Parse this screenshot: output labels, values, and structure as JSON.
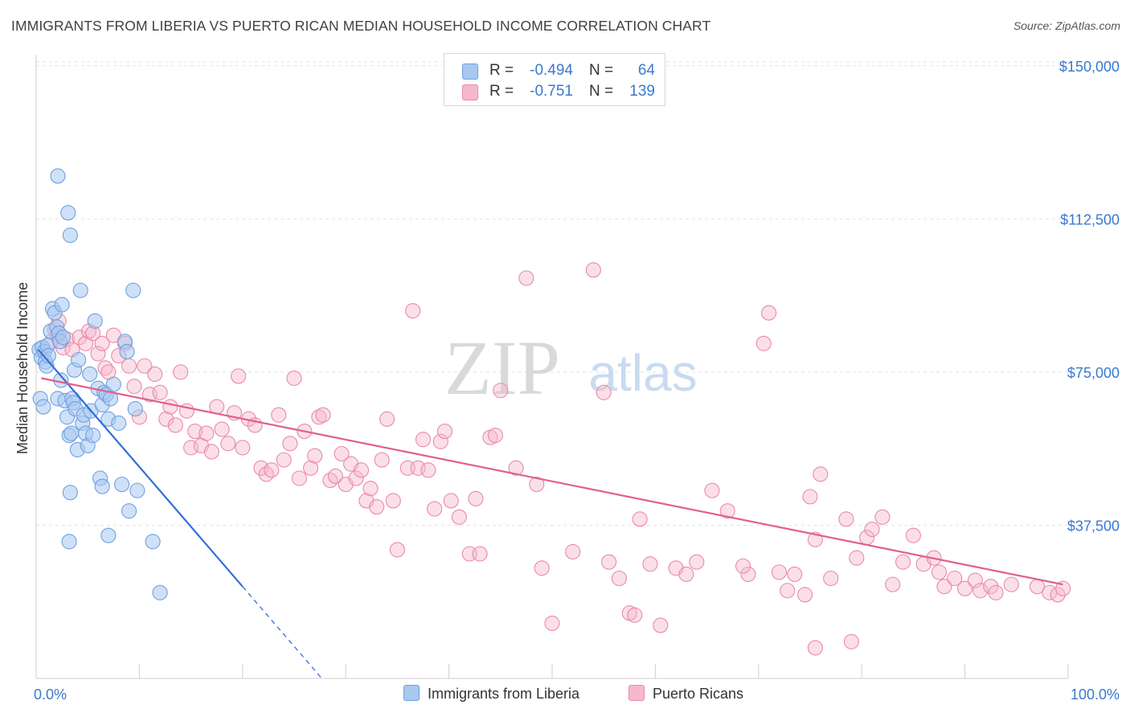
{
  "title": "IMMIGRANTS FROM LIBERIA VS PUERTO RICAN MEDIAN HOUSEHOLD INCOME CORRELATION CHART",
  "source": "Source: ZipAtlas.com",
  "watermark": {
    "zip": "ZIP",
    "atlas": "atlas"
  },
  "legend_stats": [
    {
      "r_label": "R =",
      "r_value": "-0.494",
      "n_label": "N =",
      "n_value": "64",
      "color": "#a8c8f0",
      "stroke": "#6f9fe0"
    },
    {
      "r_label": "R =",
      "r_value": "-0.751",
      "n_label": "N =",
      "n_value": "139",
      "color": "#f7b8cb",
      "stroke": "#e98aa7"
    }
  ],
  "bottom_legend": [
    {
      "label": "Immigrants from Liberia",
      "color": "#a8c8f0",
      "stroke": "#6f9fe0"
    },
    {
      "label": "Puerto Ricans",
      "color": "#f7b8cb",
      "stroke": "#e98aa7"
    }
  ],
  "chart_data": {
    "type": "scatter",
    "title": "IMMIGRANTS FROM LIBERIA VS PUERTO RICAN MEDIAN HOUSEHOLD INCOME CORRELATION CHART",
    "xlabel": "",
    "ylabel": "Median Household Income",
    "x_tick_labels": [
      "0.0%",
      "100.0%"
    ],
    "y_tick_labels": [
      "$37,500",
      "$75,000",
      "$112,500",
      "$150,000"
    ],
    "y_ticks": [
      37500,
      75000,
      112500,
      150000
    ],
    "xlim": [
      0,
      100
    ],
    "ylim": [
      0,
      155000
    ],
    "grid": true,
    "colors": {
      "blue_fill": "#a8c8f0",
      "blue_stroke": "#6f9fe0",
      "blue_line": "#2f6fd6",
      "pink_fill": "#f7b8cb",
      "pink_stroke": "#e98aa7",
      "pink_line": "#e0608c",
      "tick_text": "#3b79d0",
      "grid": "#e3e3e3"
    },
    "series": [
      {
        "name": "Immigrants from Liberia",
        "color": "#a8c8f0",
        "trend": {
          "x": [
            0.2,
            20.0
          ],
          "y": [
            80500,
            22500
          ],
          "dashed_to": [
            30,
            -9000
          ]
        },
        "points": [
          [
            0.3,
            80500
          ],
          [
            0.5,
            78500
          ],
          [
            0.6,
            81000
          ],
          [
            0.8,
            80000
          ],
          [
            0.9,
            77500
          ],
          [
            1.0,
            76500
          ],
          [
            1.1,
            81500
          ],
          [
            1.2,
            79000
          ],
          [
            0.4,
            68500
          ],
          [
            0.7,
            66500
          ],
          [
            1.4,
            85000
          ],
          [
            1.6,
            90500
          ],
          [
            1.8,
            89500
          ],
          [
            2.0,
            86000
          ],
          [
            2.2,
            84500
          ],
          [
            2.3,
            82500
          ],
          [
            2.5,
            91500
          ],
          [
            2.6,
            83500
          ],
          [
            2.1,
            68500
          ],
          [
            2.4,
            73000
          ],
          [
            2.8,
            68000
          ],
          [
            3.0,
            64000
          ],
          [
            3.2,
            59500
          ],
          [
            3.4,
            60000
          ],
          [
            3.5,
            68500
          ],
          [
            3.6,
            67500
          ],
          [
            3.7,
            75500
          ],
          [
            3.8,
            66000
          ],
          [
            4.0,
            56000
          ],
          [
            4.1,
            78000
          ],
          [
            4.3,
            95000
          ],
          [
            4.5,
            62500
          ],
          [
            4.6,
            64500
          ],
          [
            4.8,
            60000
          ],
          [
            5.0,
            57000
          ],
          [
            5.2,
            74500
          ],
          [
            5.3,
            65500
          ],
          [
            5.5,
            59500
          ],
          [
            5.7,
            87500
          ],
          [
            6.0,
            71000
          ],
          [
            6.2,
            49000
          ],
          [
            6.4,
            67000
          ],
          [
            6.6,
            70000
          ],
          [
            6.8,
            69500
          ],
          [
            7.0,
            63500
          ],
          [
            7.2,
            68500
          ],
          [
            7.5,
            72000
          ],
          [
            8.0,
            62500
          ],
          [
            8.3,
            47500
          ],
          [
            8.6,
            82500
          ],
          [
            8.8,
            80000
          ],
          [
            9.0,
            41000
          ],
          [
            9.4,
            95000
          ],
          [
            9.6,
            66000
          ],
          [
            9.8,
            46000
          ],
          [
            11.3,
            33500
          ],
          [
            12.0,
            21000
          ],
          [
            3.3,
            45500
          ],
          [
            2.1,
            123000
          ],
          [
            3.1,
            114000
          ],
          [
            3.3,
            108500
          ],
          [
            3.2,
            33500
          ],
          [
            6.4,
            47000
          ],
          [
            7.0,
            35000
          ]
        ]
      },
      {
        "name": "Puerto Ricans",
        "color": "#f7b8cb",
        "trend": {
          "x": [
            0.5,
            99.5
          ],
          "y": [
            73500,
            23000
          ]
        },
        "points": [
          [
            1.5,
            82500
          ],
          [
            1.8,
            85500
          ],
          [
            2.0,
            84000
          ],
          [
            2.2,
            87500
          ],
          [
            2.6,
            81000
          ],
          [
            3.0,
            83000
          ],
          [
            3.5,
            80500
          ],
          [
            4.2,
            83500
          ],
          [
            4.8,
            82000
          ],
          [
            5.1,
            85000
          ],
          [
            5.5,
            84500
          ],
          [
            6.0,
            79500
          ],
          [
            6.4,
            82000
          ],
          [
            6.7,
            76000
          ],
          [
            7.0,
            75000
          ],
          [
            7.5,
            84000
          ],
          [
            8.0,
            79000
          ],
          [
            8.6,
            82000
          ],
          [
            9.0,
            76500
          ],
          [
            9.5,
            71500
          ],
          [
            10.0,
            64000
          ],
          [
            10.5,
            76500
          ],
          [
            11.0,
            69500
          ],
          [
            11.5,
            74500
          ],
          [
            12.0,
            70000
          ],
          [
            12.6,
            63500
          ],
          [
            13.0,
            66500
          ],
          [
            13.5,
            62000
          ],
          [
            14.0,
            75000
          ],
          [
            14.6,
            65500
          ],
          [
            15.0,
            56500
          ],
          [
            15.4,
            60500
          ],
          [
            16.0,
            57000
          ],
          [
            16.5,
            60000
          ],
          [
            17.0,
            55500
          ],
          [
            17.5,
            66500
          ],
          [
            18.0,
            61000
          ],
          [
            18.6,
            57500
          ],
          [
            19.2,
            65000
          ],
          [
            19.6,
            74000
          ],
          [
            20.0,
            56500
          ],
          [
            20.6,
            63500
          ],
          [
            21.2,
            62000
          ],
          [
            21.8,
            51500
          ],
          [
            22.3,
            50000
          ],
          [
            22.8,
            51000
          ],
          [
            23.5,
            64500
          ],
          [
            24.0,
            53500
          ],
          [
            24.6,
            57500
          ],
          [
            25.0,
            73500
          ],
          [
            25.5,
            49000
          ],
          [
            26.0,
            60500
          ],
          [
            26.6,
            51500
          ],
          [
            27.0,
            54500
          ],
          [
            27.4,
            64000
          ],
          [
            27.8,
            64500
          ],
          [
            28.5,
            48500
          ],
          [
            29.0,
            49500
          ],
          [
            29.6,
            55000
          ],
          [
            30.0,
            47500
          ],
          [
            30.5,
            52500
          ],
          [
            31.0,
            49000
          ],
          [
            31.5,
            51000
          ],
          [
            32.0,
            43500
          ],
          [
            32.4,
            46500
          ],
          [
            33.0,
            42000
          ],
          [
            33.5,
            53500
          ],
          [
            34.0,
            63500
          ],
          [
            34.6,
            43500
          ],
          [
            35.0,
            31500
          ],
          [
            36.0,
            51500
          ],
          [
            36.5,
            90000
          ],
          [
            37.0,
            51500
          ],
          [
            37.5,
            58500
          ],
          [
            38.0,
            51000
          ],
          [
            38.6,
            41500
          ],
          [
            39.2,
            58000
          ],
          [
            39.6,
            60500
          ],
          [
            40.2,
            43500
          ],
          [
            41.0,
            39500
          ],
          [
            42.0,
            30500
          ],
          [
            42.6,
            44000
          ],
          [
            43.0,
            30500
          ],
          [
            44.0,
            59000
          ],
          [
            44.5,
            59500
          ],
          [
            45.0,
            70500
          ],
          [
            46.5,
            51500
          ],
          [
            47.5,
            98000
          ],
          [
            48.5,
            47500
          ],
          [
            49.0,
            27000
          ],
          [
            50.0,
            13500
          ],
          [
            52.0,
            31000
          ],
          [
            54.0,
            100000
          ],
          [
            55.0,
            70000
          ],
          [
            55.5,
            28500
          ],
          [
            56.5,
            24500
          ],
          [
            57.5,
            16000
          ],
          [
            58.5,
            39000
          ],
          [
            59.5,
            28000
          ],
          [
            60.5,
            13000
          ],
          [
            62.0,
            27000
          ],
          [
            63.0,
            25500
          ],
          [
            64.0,
            28500
          ],
          [
            65.5,
            46000
          ],
          [
            67.0,
            41000
          ],
          [
            69.0,
            25500
          ],
          [
            70.5,
            82000
          ],
          [
            71.0,
            89500
          ],
          [
            72.0,
            26000
          ],
          [
            72.8,
            21500
          ],
          [
            73.5,
            25500
          ],
          [
            74.5,
            20500
          ],
          [
            75.0,
            44500
          ],
          [
            75.5,
            34000
          ],
          [
            76.0,
            50000
          ],
          [
            77.0,
            24500
          ],
          [
            78.5,
            39000
          ],
          [
            79.5,
            29500
          ],
          [
            80.5,
            34500
          ],
          [
            81.0,
            36500
          ],
          [
            82.0,
            39500
          ],
          [
            83.0,
            23000
          ],
          [
            84.0,
            28500
          ],
          [
            85.0,
            35000
          ],
          [
            86.0,
            28000
          ],
          [
            87.0,
            29500
          ],
          [
            87.5,
            26000
          ],
          [
            88.0,
            22500
          ],
          [
            89.0,
            24500
          ],
          [
            90.0,
            22000
          ],
          [
            91.0,
            24000
          ],
          [
            91.5,
            21500
          ],
          [
            92.5,
            22500
          ],
          [
            93.0,
            21000
          ],
          [
            94.5,
            23000
          ],
          [
            75.5,
            7500
          ],
          [
            79.0,
            9000
          ],
          [
            97.0,
            22500
          ],
          [
            98.2,
            21000
          ],
          [
            99.0,
            20500
          ],
          [
            99.5,
            22000
          ],
          [
            58.0,
            15500
          ],
          [
            68.5,
            27500
          ]
        ]
      }
    ]
  }
}
